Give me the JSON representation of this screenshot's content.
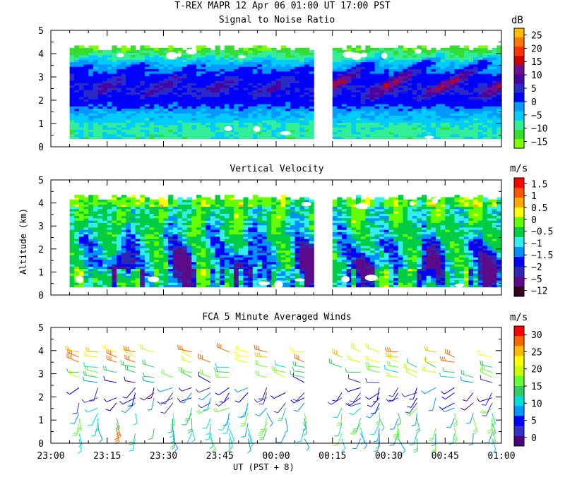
{
  "title": "T-REX  MAPR 12 Apr 06  01:00 UT  17:00  PST",
  "y_axis_label": "Altitude (km)",
  "x_axis_label": "UT  (PST + 8)",
  "colors": {
    "snr": [
      "#80ff00",
      "#33dd33",
      "#33ee99",
      "#00ccff",
      "#0099ff",
      "#0000ff",
      "#2a2ac8",
      "#4b00a0",
      "#6a1090",
      "#cc0000",
      "#ff3300",
      "#ff7700",
      "#ffbb00"
    ],
    "velocity": [
      "#330022",
      "#5c0a8a",
      "#2a2ab4",
      "#0000ff",
      "#0090ff",
      "#33eeee",
      "#00cc44",
      "#66ff00",
      "#ffff00",
      "#ffaa00",
      "#ff5500",
      "#ff0000"
    ],
    "wind": [
      "#4b0082",
      "#3333cc",
      "#0000ff",
      "#0099ff",
      "#00dddd",
      "#33cc66",
      "#66ff33",
      "#ccff00",
      "#ffff00",
      "#ffbb00",
      "#ff6600",
      "#ff0000"
    ]
  },
  "chart_data": [
    {
      "type": "heatmap",
      "title": "Signal to Noise Ratio",
      "xlabel": "UT  (PST + 8)",
      "ylabel": "Altitude (km)",
      "x_range_minutes": [
        0,
        120
      ],
      "ylim": [
        0,
        5
      ],
      "y_ticks": [
        "0",
        "1",
        "2",
        "3",
        "4",
        "5"
      ],
      "data_gap_minutes": [
        70,
        74
      ],
      "data_altitude_km": [
        0.35,
        4.35
      ],
      "colorbar": {
        "unit": "dB",
        "tick_labels": [
          "25",
          "20",
          "15",
          "10",
          "5",
          "0",
          "−5",
          "−10",
          "−15"
        ],
        "levels": [
          -17,
          -15,
          -12.5,
          -10,
          -7.5,
          -5,
          0,
          2.5,
          5,
          7.5,
          10,
          15,
          20,
          25,
          29
        ]
      }
    },
    {
      "type": "heatmap",
      "title": "Vertical Velocity",
      "xlabel": "UT  (PST + 8)",
      "ylabel": "Altitude (km)",
      "x_range_minutes": [
        0,
        120
      ],
      "ylim": [
        0,
        5
      ],
      "y_ticks": [
        "0",
        "1",
        "2",
        "3",
        "4",
        "5"
      ],
      "data_gap_minutes": [
        70,
        74
      ],
      "data_altitude_km": [
        0.35,
        4.3
      ],
      "colorbar": {
        "unit": "m/s",
        "tick_labels": [
          "1.5",
          "1",
          "0.5",
          "0",
          "−0.5",
          "−1",
          "−1.5",
          "−2",
          "−5",
          "−12"
        ],
        "levels": [
          -12,
          -5,
          -2,
          -1.75,
          -1.5,
          -1.25,
          -1,
          -0.5,
          0,
          0.5,
          1,
          1.5,
          2
        ]
      }
    },
    {
      "type": "barbs",
      "title": "FCA 5 Minute Averaged Winds",
      "xlabel": "UT  (PST + 8)",
      "ylabel": "Altitude (km)",
      "x_range_minutes": [
        0,
        120
      ],
      "x_tick_labels": [
        "23:00",
        "23:15",
        "23:30",
        "23:45",
        "00:00",
        "00:15",
        "00:30",
        "00:45",
        "01:00"
      ],
      "ylim": [
        0,
        5
      ],
      "y_ticks": [
        "0",
        "1",
        "2",
        "3",
        "4",
        "5"
      ],
      "barb_columns_minutes": [
        7.5,
        12.5,
        17.5,
        22.5,
        27.5,
        32.5,
        37.5,
        42.5,
        47.5,
        52.5,
        57.5,
        62.5,
        67.5,
        77.5,
        82.5,
        87.5,
        92.5,
        97.5,
        102.5,
        107.5,
        112.5,
        117.5
      ],
      "colorbar": {
        "unit": "m/s",
        "tick_labels": [
          "30",
          "25",
          "20",
          "15",
          "10",
          "5",
          "0"
        ],
        "range": [
          0,
          32
        ]
      }
    }
  ]
}
